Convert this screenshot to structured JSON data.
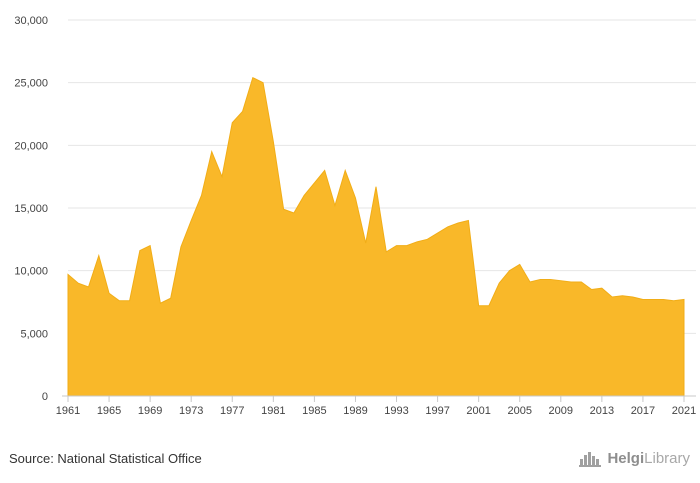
{
  "chart_data": {
    "type": "area",
    "x_tick_labels": [
      "1961",
      "1965",
      "1969",
      "1973",
      "1977",
      "1981",
      "1985",
      "1989",
      "1993",
      "1997",
      "2001",
      "2005",
      "2009",
      "2013",
      "2017",
      "2021"
    ],
    "y_tick_labels": [
      "0",
      "5,000",
      "10,000",
      "15,000",
      "20,000",
      "25,000",
      "30,000"
    ],
    "ylim": [
      0,
      30000
    ],
    "xlim": [
      1961,
      2021
    ],
    "grid": "horizontal",
    "series": [
      {
        "color": "#f9b829",
        "x": [
          1961,
          1962,
          1963,
          1964,
          1965,
          1966,
          1967,
          1968,
          1969,
          1970,
          1971,
          1972,
          1973,
          1974,
          1975,
          1976,
          1977,
          1978,
          1979,
          1980,
          1981,
          1982,
          1983,
          1984,
          1985,
          1986,
          1987,
          1988,
          1989,
          1990,
          1991,
          1992,
          1993,
          1994,
          1995,
          1996,
          1997,
          1998,
          1999,
          2000,
          2001,
          2002,
          2003,
          2004,
          2005,
          2006,
          2007,
          2008,
          2009,
          2010,
          2011,
          2012,
          2013,
          2014,
          2015,
          2016,
          2017,
          2018,
          2019,
          2020,
          2021
        ],
        "values": [
          9700,
          9000,
          8700,
          11200,
          8200,
          7600,
          7600,
          11600,
          12000,
          7400,
          7800,
          11900,
          14000,
          16000,
          19500,
          17500,
          21800,
          22700,
          25400,
          25000,
          20300,
          14900,
          14600,
          16000,
          17000,
          18000,
          15200,
          18000,
          15800,
          12200,
          16700,
          11500,
          12000,
          12000,
          12300,
          12500,
          13000,
          13500,
          13800,
          14000,
          7200,
          7200,
          9000,
          10000,
          10500,
          9100,
          9300,
          9300,
          9200,
          9100,
          9100,
          8500,
          8600,
          7900,
          8000,
          7900,
          7700,
          7700,
          7700,
          7600,
          7700
        ]
      }
    ]
  },
  "footer": {
    "source": "Source: National Statistical Office",
    "brand_part1": "Helgi",
    "brand_part2": "Library"
  }
}
